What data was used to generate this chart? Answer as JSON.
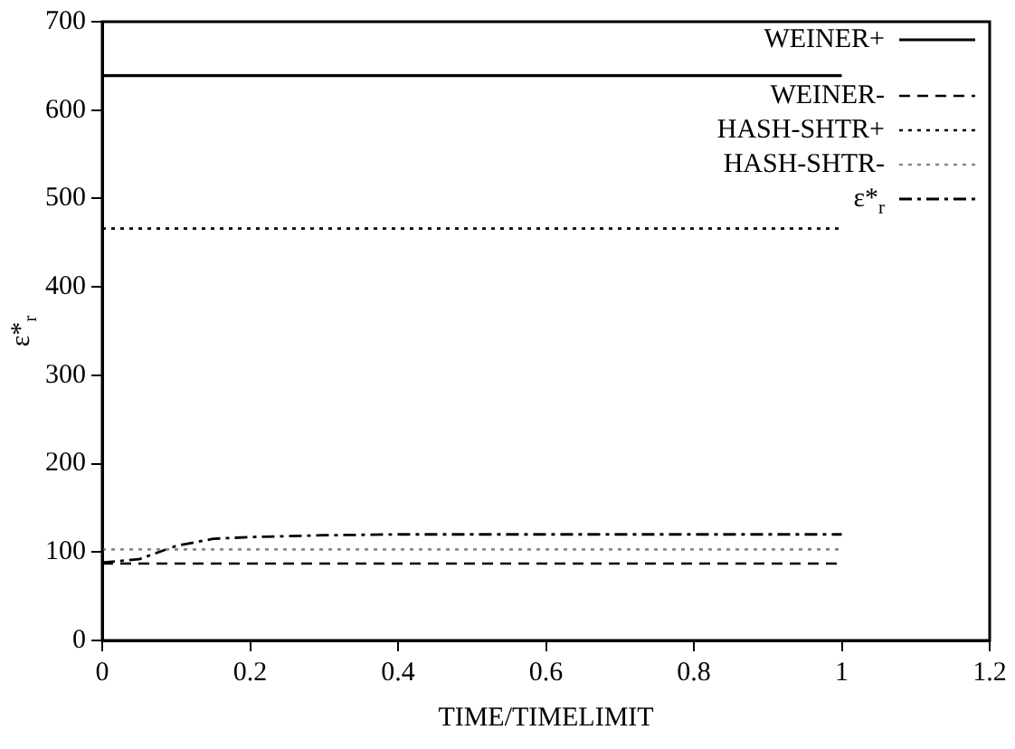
{
  "chart_data": {
    "type": "line",
    "xlabel": "TIME/TIMELIMIT",
    "ylabel": "ε*$_{r}$",
    "xlim": [
      0,
      1.2
    ],
    "xticks": [
      0,
      0.2,
      0.4,
      0.6,
      0.8,
      1,
      1.2
    ],
    "ylim": [
      0,
      700
    ],
    "yticks": [
      0,
      100,
      200,
      300,
      400,
      500,
      600,
      700
    ],
    "grid": false,
    "legend": "top right",
    "marker": "none",
    "series": [
      {
        "name": "WEINER+",
        "color": "#000000",
        "line_style": "solid",
        "x": [
          0,
          1
        ],
        "values": [
          639,
          639
        ]
      },
      {
        "name": "WEINER-",
        "color": "#000000",
        "line_style": "dashed",
        "x": [
          0,
          1
        ],
        "values": [
          87,
          87
        ]
      },
      {
        "name": "HASH-SHTR+",
        "color": "#000000",
        "line_style": "dotted",
        "x": [
          0,
          1
        ],
        "values": [
          466,
          466
        ]
      },
      {
        "name": "HASH-SHTR-",
        "color": "#888888",
        "line_style": "dotted",
        "x": [
          0,
          1
        ],
        "values": [
          103,
          103
        ]
      },
      {
        "name": "ε*$_{r}$",
        "color": "#000000",
        "line_style": "dashdot",
        "x": [
          0,
          0.05,
          0.1,
          0.15,
          0.2,
          0.3,
          0.4,
          0.6,
          0.8,
          1
        ],
        "values": [
          88,
          92,
          107,
          115,
          117,
          119,
          120,
          120,
          120,
          120
        ]
      }
    ]
  }
}
